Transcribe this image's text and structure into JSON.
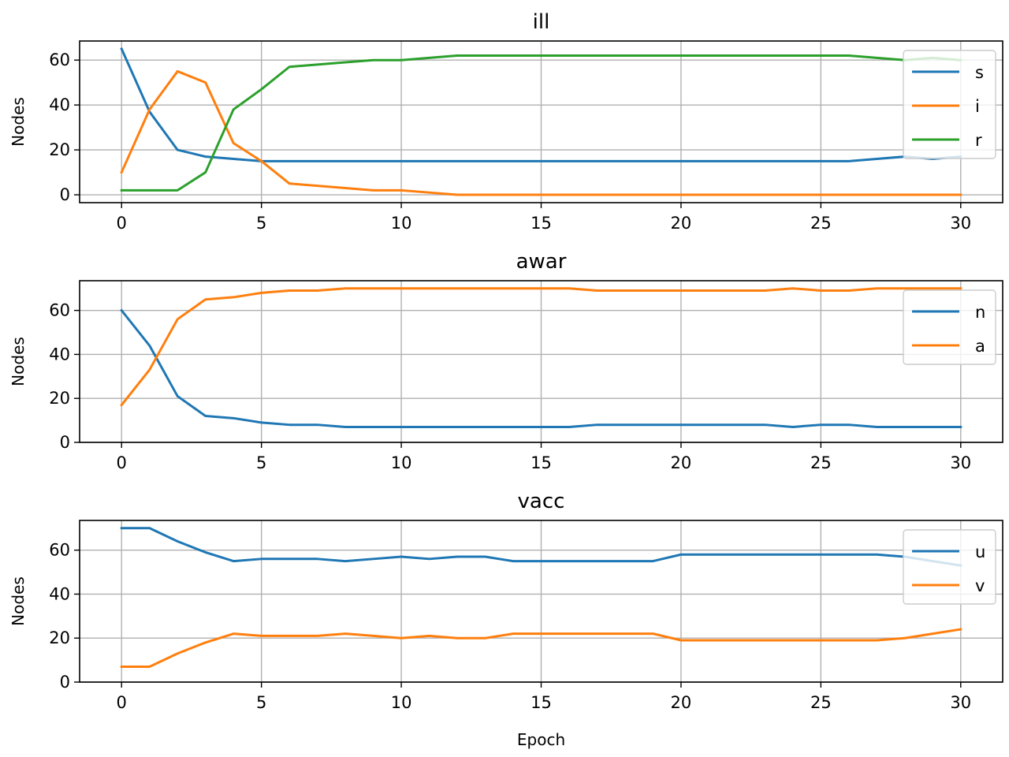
{
  "chart_data": [
    {
      "type": "line",
      "title": "ill",
      "xlabel": "",
      "ylabel": "Nodes",
      "x": [
        0,
        1,
        2,
        3,
        4,
        5,
        6,
        7,
        8,
        9,
        10,
        11,
        12,
        13,
        14,
        15,
        16,
        17,
        18,
        19,
        20,
        21,
        22,
        23,
        24,
        25,
        26,
        27,
        28,
        29,
        30
      ],
      "xlim": [
        -1.5,
        31.5
      ],
      "ylim": [
        -3.5,
        68.5
      ],
      "xticks": [
        0,
        5,
        10,
        15,
        20,
        25,
        30
      ],
      "yticks": [
        0,
        20,
        40,
        60
      ],
      "grid": true,
      "legend_position": "top-right",
      "series": [
        {
          "name": "s",
          "color": "#1f77b4",
          "values": [
            65,
            37,
            20,
            17,
            16,
            15,
            15,
            15,
            15,
            15,
            15,
            15,
            15,
            15,
            15,
            15,
            15,
            15,
            15,
            15,
            15,
            15,
            15,
            15,
            15,
            15,
            15,
            16,
            17,
            16,
            17
          ]
        },
        {
          "name": "i",
          "color": "#ff7f0e",
          "values": [
            10,
            38,
            55,
            50,
            23,
            15,
            5,
            4,
            3,
            2,
            2,
            1,
            0,
            0,
            0,
            0,
            0,
            0,
            0,
            0,
            0,
            0,
            0,
            0,
            0,
            0,
            0,
            0,
            0,
            0,
            0
          ]
        },
        {
          "name": "r",
          "color": "#2ca02c",
          "values": [
            2,
            2,
            2,
            10,
            38,
            47,
            57,
            58,
            59,
            60,
            60,
            61,
            62,
            62,
            62,
            62,
            62,
            62,
            62,
            62,
            62,
            62,
            62,
            62,
            62,
            62,
            62,
            61,
            60,
            61,
            60
          ]
        }
      ]
    },
    {
      "type": "line",
      "title": "awar",
      "xlabel": "",
      "ylabel": "Nodes",
      "x": [
        0,
        1,
        2,
        3,
        4,
        5,
        6,
        7,
        8,
        9,
        10,
        11,
        12,
        13,
        14,
        15,
        16,
        17,
        18,
        19,
        20,
        21,
        22,
        23,
        24,
        25,
        26,
        27,
        28,
        29,
        30
      ],
      "xlim": [
        -1.5,
        31.5
      ],
      "ylim": [
        0,
        73.5
      ],
      "xticks": [
        0,
        5,
        10,
        15,
        20,
        25,
        30
      ],
      "yticks": [
        0,
        20,
        40,
        60
      ],
      "grid": true,
      "legend_position": "top-right",
      "series": [
        {
          "name": "n",
          "color": "#1f77b4",
          "values": [
            60,
            44,
            21,
            12,
            11,
            9,
            8,
            8,
            7,
            7,
            7,
            7,
            7,
            7,
            7,
            7,
            7,
            8,
            8,
            8,
            8,
            8,
            8,
            8,
            7,
            8,
            8,
            7,
            7,
            7,
            7
          ]
        },
        {
          "name": "a",
          "color": "#ff7f0e",
          "values": [
            17,
            33,
            56,
            65,
            66,
            68,
            69,
            69,
            70,
            70,
            70,
            70,
            70,
            70,
            70,
            70,
            70,
            69,
            69,
            69,
            69,
            69,
            69,
            69,
            70,
            69,
            69,
            70,
            70,
            70,
            70
          ]
        }
      ]
    },
    {
      "type": "line",
      "title": "vacc",
      "xlabel": "Epoch",
      "ylabel": "Nodes",
      "x": [
        0,
        1,
        2,
        3,
        4,
        5,
        6,
        7,
        8,
        9,
        10,
        11,
        12,
        13,
        14,
        15,
        16,
        17,
        18,
        19,
        20,
        21,
        22,
        23,
        24,
        25,
        26,
        27,
        28,
        29,
        30
      ],
      "xlim": [
        -1.5,
        31.5
      ],
      "ylim": [
        0,
        73.5
      ],
      "xticks": [
        0,
        5,
        10,
        15,
        20,
        25,
        30
      ],
      "yticks": [
        0,
        20,
        40,
        60
      ],
      "grid": true,
      "legend_position": "top-right",
      "series": [
        {
          "name": "u",
          "color": "#1f77b4",
          "values": [
            70,
            70,
            64,
            59,
            55,
            56,
            56,
            56,
            55,
            56,
            57,
            56,
            57,
            57,
            55,
            55,
            55,
            55,
            55,
            55,
            58,
            58,
            58,
            58,
            58,
            58,
            58,
            58,
            57,
            55,
            53
          ]
        },
        {
          "name": "v",
          "color": "#ff7f0e",
          "values": [
            7,
            7,
            13,
            18,
            22,
            21,
            21,
            21,
            22,
            21,
            20,
            21,
            20,
            20,
            22,
            22,
            22,
            22,
            22,
            22,
            19,
            19,
            19,
            19,
            19,
            19,
            19,
            19,
            20,
            22,
            24
          ]
        }
      ]
    }
  ]
}
